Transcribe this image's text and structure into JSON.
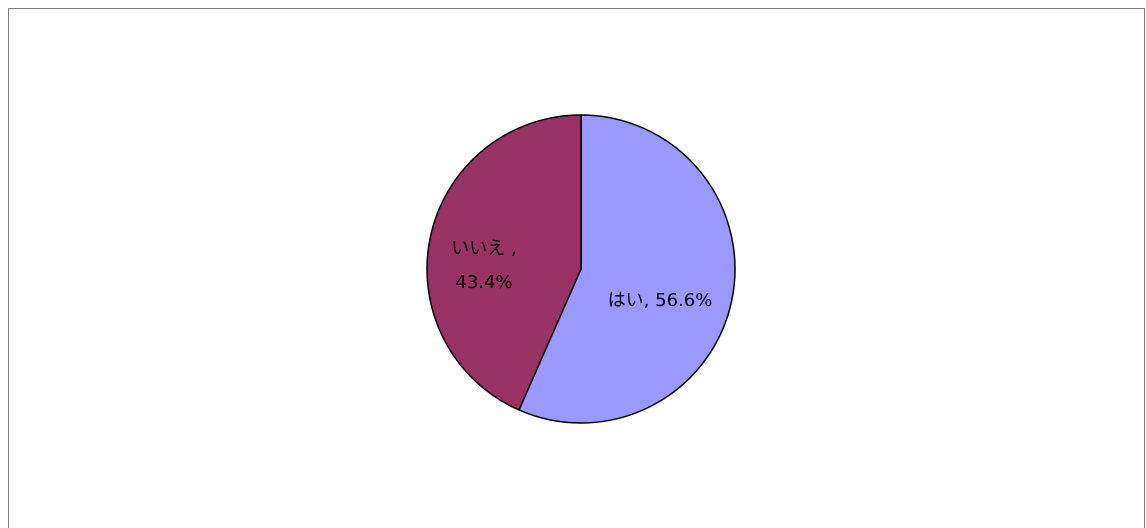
{
  "chart_data": {
    "type": "pie",
    "title": "",
    "start_angle_deg": 0,
    "direction": "clockwise",
    "slice_order": [
      "はい",
      "いいえ"
    ],
    "slices": [
      {
        "label": "はい",
        "value": 56.6,
        "display_label_lines": [
          "はい, 56.6%"
        ],
        "color": "#9999ff"
      },
      {
        "label": "いいえ",
        "value": 43.4,
        "display_label_lines": [
          "いいえ ,",
          "43.4%"
        ],
        "color": "#993366"
      }
    ],
    "legend": "none",
    "border_color": "#000000"
  }
}
